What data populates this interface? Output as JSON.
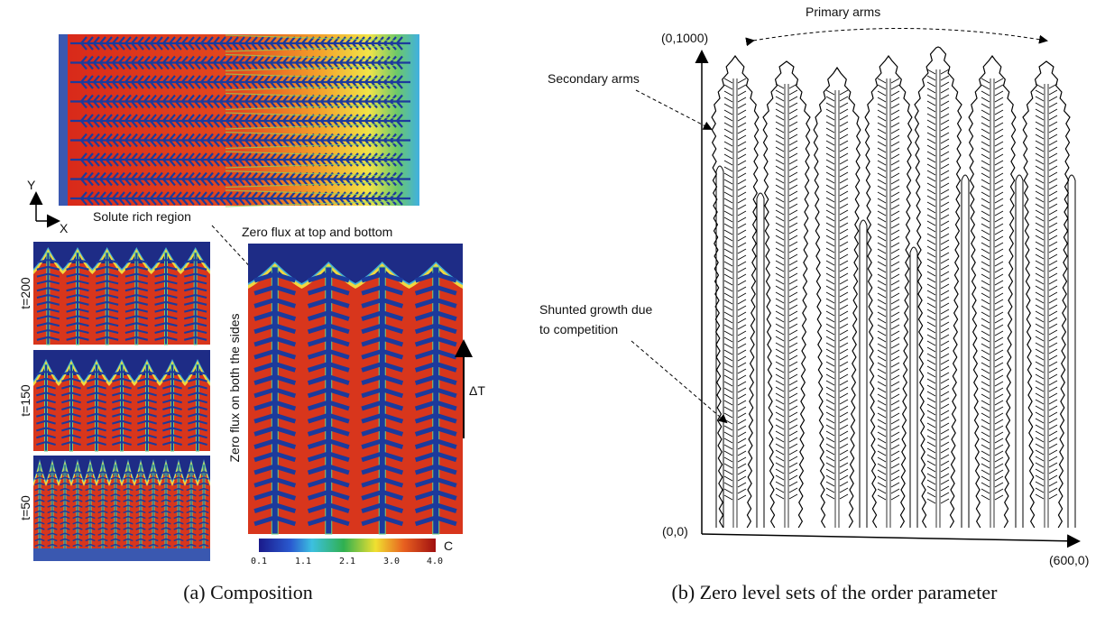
{
  "panel_a": {
    "axes_icon": {
      "y": "Y",
      "x": "X"
    },
    "annotation_solute": "Solute rich region",
    "annotation_top": "Zero flux at top and bottom",
    "annotation_sides": "Zero flux  on both the sides",
    "delta_t": "ΔT",
    "snapshots": [
      "t=200",
      "t=150",
      "t=50"
    ],
    "colorbar": {
      "ticks": [
        "0.1",
        "1.1",
        "2.1",
        "3.0",
        "4.0"
      ],
      "label": "C"
    },
    "caption": "(a) Composition"
  },
  "panel_b": {
    "primary_arms": "Primary arms",
    "secondary_arms": "Secondary arms",
    "shunted": [
      "Shunted growth due",
      "to  competition"
    ],
    "corner_top": "(0,1000)",
    "origin": "(0,0)",
    "corner_right": "(600,0)",
    "caption": "(b) Zero level sets of the order parameter"
  }
}
